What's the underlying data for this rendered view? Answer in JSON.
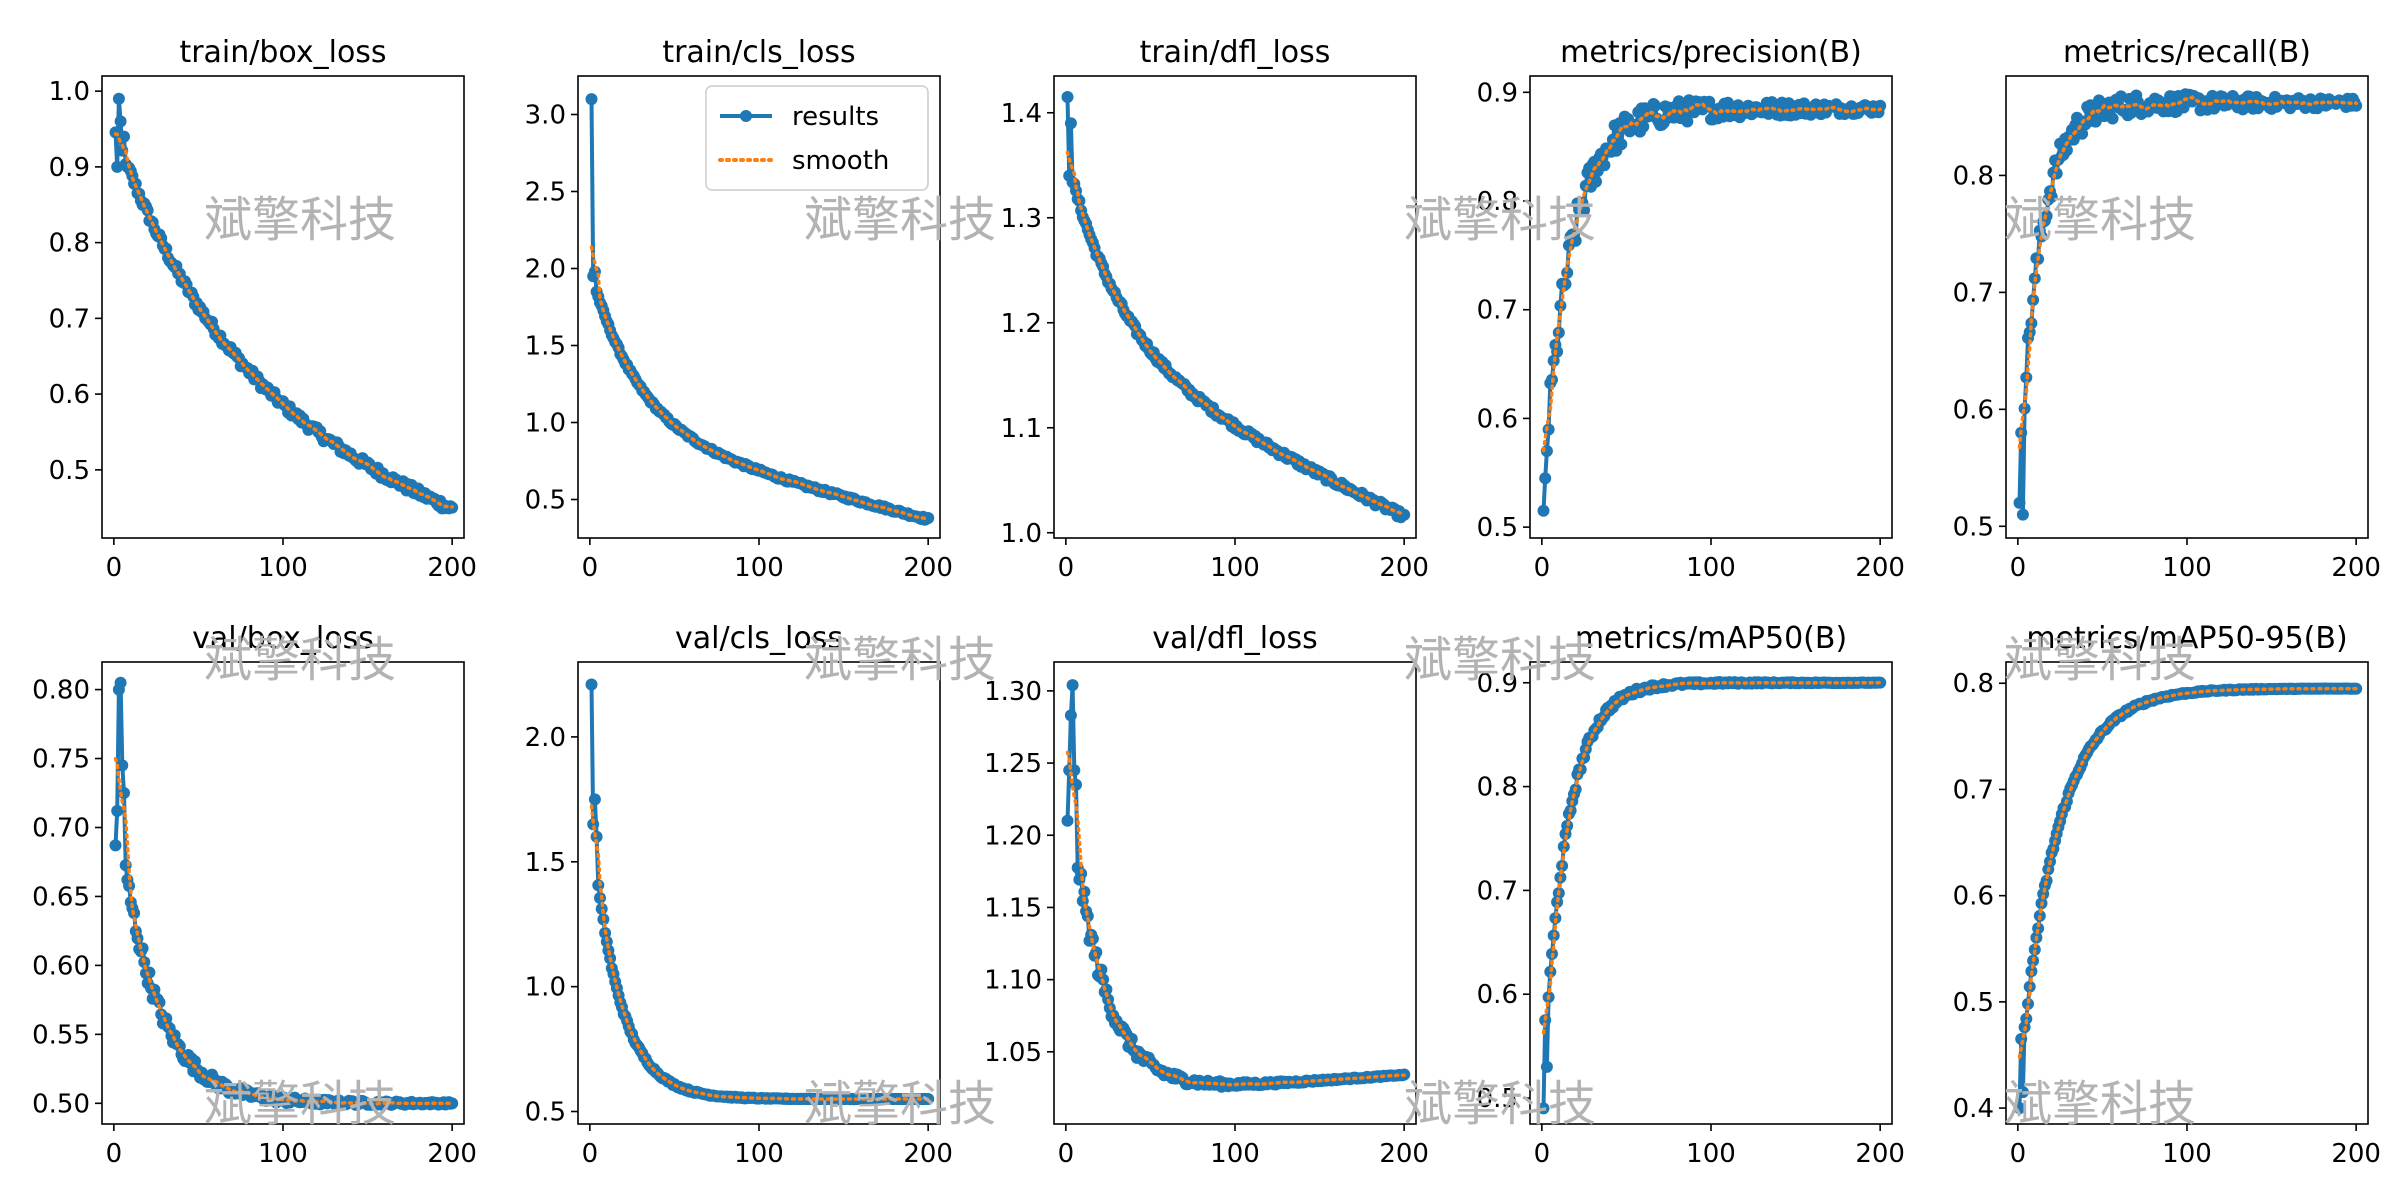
{
  "figure": {
    "watermark": "斌擎科技",
    "colors": {
      "results": "#1f77b4",
      "smooth": "#ff7f0e",
      "axis": "#000000",
      "watermark": "#b3b3b3"
    }
  },
  "chart_data": [
    {
      "type": "line",
      "title": "train/box_loss",
      "xlim": [
        -7,
        207
      ],
      "ylim": [
        0.41,
        1.02
      ],
      "xticks": [
        0,
        100,
        200
      ],
      "yticks": [
        0.5,
        0.6,
        0.7,
        0.8,
        0.9,
        1.0
      ],
      "ytick_labels": [
        "0.5",
        "0.6",
        "0.7",
        "0.8",
        "0.9",
        "1.0"
      ],
      "profile": {
        "kind": "decay",
        "start": 0.95,
        "end": 0.43,
        "k": 0.015,
        "lin": 0.28,
        "noise": 0.006,
        "spikes": [
          [
            2,
            0.9
          ],
          [
            3,
            0.99
          ],
          [
            4,
            0.96
          ],
          [
            6,
            0.94
          ],
          [
            8,
            0.9
          ]
        ]
      },
      "legend": null,
      "series": [
        {
          "name": "results"
        },
        {
          "name": "smooth"
        }
      ]
    },
    {
      "type": "line",
      "title": "train/cls_loss",
      "xlim": [
        -7,
        207
      ],
      "ylim": [
        0.25,
        3.25
      ],
      "xticks": [
        0,
        100,
        200
      ],
      "yticks": [
        0.5,
        1.0,
        1.5,
        2.0,
        2.5,
        3.0
      ],
      "ytick_labels": [
        "0.5",
        "1.0",
        "1.5",
        "2.0",
        "2.5",
        "3.0"
      ],
      "profile": {
        "kind": "decay",
        "start": 2.0,
        "end": 0.37,
        "k": 0.035,
        "lin": 0.35,
        "noise": 0.01,
        "spikes": [
          [
            1,
            3.1
          ],
          [
            2,
            1.95
          ],
          [
            3,
            1.98
          ]
        ]
      },
      "legend": {
        "location": "upper right",
        "entries": [
          "results",
          "smooth"
        ]
      },
      "series": [
        {
          "name": "results"
        },
        {
          "name": "smooth"
        }
      ]
    },
    {
      "type": "line",
      "title": "train/dfl_loss",
      "xlim": [
        -7,
        207
      ],
      "ylim": [
        0.995,
        1.435
      ],
      "xticks": [
        0,
        100,
        200
      ],
      "yticks": [
        1.0,
        1.1,
        1.2,
        1.3,
        1.4
      ],
      "ytick_labels": [
        "1.0",
        "1.1",
        "1.2",
        "1.3",
        "1.4"
      ],
      "profile": {
        "kind": "decay",
        "start": 1.36,
        "end": 1.015,
        "k": 0.03,
        "lin": 0.45,
        "noise": 0.003,
        "spikes": [
          [
            1,
            1.415
          ],
          [
            2,
            1.34
          ],
          [
            3,
            1.39
          ]
        ]
      },
      "legend": null,
      "series": [
        {
          "name": "results"
        },
        {
          "name": "smooth"
        }
      ]
    },
    {
      "type": "line",
      "title": "metrics/precision(B)",
      "xlim": [
        -7,
        207
      ],
      "ylim": [
        0.49,
        0.915
      ],
      "xticks": [
        0,
        100,
        200
      ],
      "yticks": [
        0.5,
        0.6,
        0.7,
        0.8,
        0.9
      ],
      "ytick_labels": [
        "0.5",
        "0.6",
        "0.7",
        "0.8",
        "0.9"
      ],
      "profile": {
        "kind": "rise",
        "start": 0.52,
        "end": 0.885,
        "k": 0.06,
        "lin": 0.0,
        "noise": 0.02,
        "noise_decay": 130,
        "spikes": [
          [
            1,
            0.515
          ],
          [
            2,
            0.545
          ],
          [
            3,
            0.57
          ]
        ]
      },
      "legend": null,
      "series": [
        {
          "name": "results"
        },
        {
          "name": "smooth"
        }
      ]
    },
    {
      "type": "line",
      "title": "metrics/recall(B)",
      "xlim": [
        -7,
        207
      ],
      "ylim": [
        0.49,
        0.885
      ],
      "xticks": [
        0,
        100,
        200
      ],
      "yticks": [
        0.5,
        0.6,
        0.7,
        0.8
      ],
      "ytick_labels": [
        "0.5",
        "0.6",
        "0.7",
        "0.8"
      ],
      "profile": {
        "kind": "rise",
        "start": 0.52,
        "end": 0.862,
        "k": 0.08,
        "lin": 0.0,
        "noise": 0.014,
        "noise_decay": 160,
        "spikes": [
          [
            1,
            0.52
          ],
          [
            2,
            0.58
          ],
          [
            3,
            0.51
          ]
        ]
      },
      "legend": null,
      "series": [
        {
          "name": "results"
        },
        {
          "name": "smooth"
        }
      ]
    },
    {
      "type": "line",
      "title": "val/box_loss",
      "xlim": [
        -7,
        207
      ],
      "ylim": [
        0.485,
        0.82
      ],
      "xticks": [
        0,
        100,
        200
      ],
      "yticks": [
        0.5,
        0.55,
        0.6,
        0.65,
        0.7,
        0.75,
        0.8
      ],
      "ytick_labels": [
        "0.50",
        "0.55",
        "0.60",
        "0.65",
        "0.70",
        "0.75",
        "0.80"
      ],
      "profile": {
        "kind": "decay",
        "start": 0.73,
        "end": 0.5,
        "k": 0.045,
        "lin": 0.0,
        "noise": 0.008,
        "noise_decay": 90,
        "spikes": [
          [
            1,
            0.687
          ],
          [
            2,
            0.712
          ],
          [
            3,
            0.8
          ],
          [
            4,
            0.805
          ],
          [
            5,
            0.745
          ],
          [
            6,
            0.725
          ]
        ]
      },
      "legend": null,
      "series": [
        {
          "name": "results"
        },
        {
          "name": "smooth"
        }
      ]
    },
    {
      "type": "line",
      "title": "val/cls_loss",
      "xlim": [
        -7,
        207
      ],
      "ylim": [
        0.45,
        2.3
      ],
      "xticks": [
        0,
        100,
        200
      ],
      "yticks": [
        0.5,
        1.0,
        1.5,
        2.0
      ],
      "ytick_labels": [
        "0.5",
        "1.0",
        "1.5",
        "2.0"
      ],
      "profile": {
        "kind": "decay",
        "start": 1.7,
        "end": 0.55,
        "k": 0.06,
        "lin": 0.0,
        "noise": 0.01,
        "noise_decay": 60,
        "spikes": [
          [
            1,
            2.21
          ],
          [
            2,
            1.65
          ],
          [
            3,
            1.75
          ],
          [
            4,
            1.6
          ]
        ]
      },
      "legend": null,
      "series": [
        {
          "name": "results"
        },
        {
          "name": "smooth"
        }
      ]
    },
    {
      "type": "line",
      "title": "val/dfl_loss",
      "xlim": [
        -7,
        207
      ],
      "ylim": [
        1.0,
        1.32
      ],
      "xticks": [
        0,
        100,
        200
      ],
      "yticks": [
        1.05,
        1.1,
        1.15,
        1.2,
        1.25,
        1.3
      ],
      "ytick_labels": [
        "1.05",
        "1.10",
        "1.15",
        "1.20",
        "1.25",
        "1.30"
      ],
      "profile": {
        "kind": "decay_rebound",
        "start": 1.25,
        "end": 1.018,
        "k": 0.05,
        "rebound": 0.016,
        "noise": 0.01,
        "noise_decay": 55,
        "spikes": [
          [
            1,
            1.21
          ],
          [
            2,
            1.245
          ],
          [
            3,
            1.283
          ],
          [
            4,
            1.304
          ],
          [
            5,
            1.245
          ],
          [
            6,
            1.235
          ]
        ]
      },
      "legend": null,
      "series": [
        {
          "name": "results"
        },
        {
          "name": "smooth"
        }
      ]
    },
    {
      "type": "line",
      "title": "metrics/mAP50(B)",
      "xlim": [
        -7,
        207
      ],
      "ylim": [
        0.475,
        0.92
      ],
      "xticks": [
        0,
        100,
        200
      ],
      "yticks": [
        0.5,
        0.6,
        0.7,
        0.8,
        0.9
      ],
      "ytick_labels": [
        "0.5",
        "0.6",
        "0.7",
        "0.8",
        "0.9"
      ],
      "profile": {
        "kind": "rise",
        "start": 0.5,
        "end": 0.9,
        "k": 0.07,
        "lin": 0.0,
        "noise": 0.006,
        "noise_decay": 60,
        "spikes": [
          [
            1,
            0.49
          ],
          [
            2,
            0.575
          ],
          [
            3,
            0.53
          ]
        ]
      },
      "legend": null,
      "series": [
        {
          "name": "results"
        },
        {
          "name": "smooth"
        }
      ]
    },
    {
      "type": "line",
      "title": "metrics/mAP50-95(B)",
      "xlim": [
        -7,
        207
      ],
      "ylim": [
        0.385,
        0.82
      ],
      "xticks": [
        0,
        100,
        200
      ],
      "yticks": [
        0.4,
        0.5,
        0.6,
        0.7,
        0.8
      ],
      "ytick_labels": [
        "0.4",
        "0.5",
        "0.6",
        "0.7",
        "0.8"
      ],
      "profile": {
        "kind": "rise",
        "start": 0.41,
        "end": 0.795,
        "k": 0.045,
        "lin": 0.0,
        "noise": 0.004,
        "noise_decay": 60,
        "spikes": [
          [
            1,
            0.4
          ],
          [
            2,
            0.465
          ],
          [
            3,
            0.415
          ]
        ]
      },
      "legend": null,
      "series": [
        {
          "name": "results"
        },
        {
          "name": "smooth"
        }
      ]
    }
  ]
}
